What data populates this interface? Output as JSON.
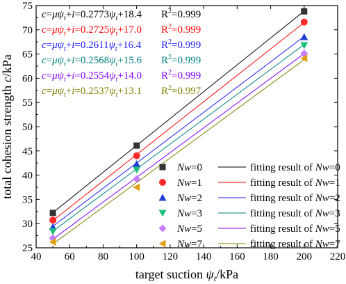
{
  "chart_data": {
    "type": "scatter",
    "xlabel_prefix": "target suction ",
    "xlabel_symbol": "ψ",
    "xlabel_sub": "t",
    "xlabel_suffix": "/kPa",
    "ylabel_prefix": "total cohesion strength ",
    "ylabel_symbol": "c",
    "ylabel_suffix": "/kPa",
    "xlim": [
      40,
      220
    ],
    "ylim": [
      25,
      75
    ],
    "xticks": [
      40,
      60,
      80,
      100,
      120,
      140,
      160,
      180,
      200,
      220
    ],
    "yticks": [
      25,
      30,
      35,
      40,
      45,
      50,
      55,
      60,
      65,
      70,
      75
    ],
    "legend_position": "bottom-right",
    "series": [
      {
        "name": "Nw=0",
        "nw": "0",
        "marker": "square",
        "color": "#333333",
        "line_color": "#000000",
        "x": [
          50,
          100,
          200
        ],
        "y": [
          32.2,
          46.1,
          73.8
        ],
        "fit": {
          "slope": 0.2773,
          "intercept": 18.4,
          "slope_text": "0.2773",
          "intercept_text": "18.4",
          "r2": "0.999"
        }
      },
      {
        "name": "Nw=1",
        "nw": "1",
        "marker": "circle",
        "color": "#ff2a2a",
        "line_color": "#ff0000",
        "x": [
          50,
          100,
          200
        ],
        "y": [
          30.7,
          44.0,
          71.6
        ],
        "fit": {
          "slope": 0.2725,
          "intercept": 17.0,
          "slope_text": "0.2725",
          "intercept_text": "17.0",
          "r2": "0.999"
        }
      },
      {
        "name": "Nw=2",
        "nw": "2",
        "marker": "triangle-up",
        "color": "#1f3fd6",
        "line_color": "#1a1aff",
        "x": [
          50,
          100,
          200
        ],
        "y": [
          29.3,
          42.3,
          68.5
        ],
        "fit": {
          "slope": 0.2611,
          "intercept": 16.4,
          "slope_text": "0.2611",
          "intercept_text": "16.4",
          "r2": "0.999"
        }
      },
      {
        "name": "Nw=3",
        "nw": "3",
        "marker": "triangle-down",
        "color": "#1fbf7a",
        "line_color": "#008080",
        "x": [
          50,
          100,
          200
        ],
        "y": [
          28.4,
          41.1,
          66.8
        ],
        "fit": {
          "slope": 0.2568,
          "intercept": 15.6,
          "slope_text": "0.2568",
          "intercept_text": "15.6",
          "r2": "0.999"
        }
      },
      {
        "name": "Nw=5",
        "nw": "5",
        "marker": "diamond",
        "color": "#c77dff",
        "line_color": "#8000ff",
        "x": [
          50,
          100,
          200
        ],
        "y": [
          27.0,
          39.2,
          65.1
        ],
        "fit": {
          "slope": 0.2554,
          "intercept": 14.0,
          "slope_text": "0.2554",
          "intercept_text": "14.0",
          "r2": "0.999"
        }
      },
      {
        "name": "Nw=7",
        "nw": "7",
        "marker": "triangle-left",
        "color": "#e0a010",
        "line_color": "#808000",
        "x": [
          50,
          100,
          200
        ],
        "y": [
          26.2,
          37.5,
          64.1
        ],
        "fit": {
          "slope": 0.2537,
          "intercept": 13.1,
          "slope_text": "0.2537",
          "intercept_text": "13.1",
          "r2": "0.997"
        }
      }
    ],
    "legend_fit_prefix": "fitting result of ",
    "legend_nw_label": "Nw",
    "equation": {
      "c": "c",
      "mu": "μ",
      "psi": "ψ",
      "sub": "t",
      "i": "i",
      "r2_label": "R",
      "r2_sup": "2"
    },
    "equation_colors": [
      "#000000",
      "#ff0000",
      "#1a1aff",
      "#008080",
      "#8000ff",
      "#808000"
    ]
  }
}
